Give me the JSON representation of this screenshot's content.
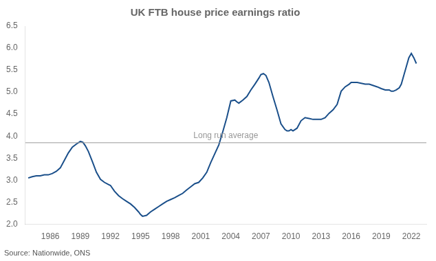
{
  "chart_data": {
    "type": "line",
    "title": "UK FTB house price earnings ratio",
    "source": "Source: Nationwide, ONS",
    "x": [
      1983.8,
      1984.2,
      1984.6,
      1985.0,
      1985.4,
      1985.8,
      1986.2,
      1986.6,
      1987.0,
      1987.4,
      1987.8,
      1988.2,
      1988.6,
      1989.0,
      1989.25,
      1989.5,
      1989.8,
      1990.2,
      1990.6,
      1991.0,
      1991.4,
      1991.8,
      1992.0,
      1992.4,
      1992.8,
      1993.2,
      1993.6,
      1994.0,
      1994.4,
      1994.8,
      1995.0,
      1995.2,
      1995.6,
      1996.0,
      1996.4,
      1996.8,
      1997.2,
      1997.6,
      1998.0,
      1998.4,
      1998.8,
      1999.2,
      1999.6,
      2000.0,
      2000.4,
      2000.8,
      2001.2,
      2001.6,
      2002.0,
      2002.4,
      2002.8,
      2003.2,
      2003.6,
      2004.0,
      2004.4,
      2004.6,
      2004.8,
      2005.2,
      2005.6,
      2006.0,
      2006.4,
      2006.8,
      2007.0,
      2007.25,
      2007.5,
      2007.8,
      2008.2,
      2008.6,
      2009.0,
      2009.4,
      2009.6,
      2009.8,
      2010.0,
      2010.2,
      2010.6,
      2011.0,
      2011.4,
      2011.8,
      2012.2,
      2012.6,
      2013.0,
      2013.4,
      2013.8,
      2014.2,
      2014.6,
      2015.0,
      2015.4,
      2015.8,
      2016.0,
      2016.2,
      2016.6,
      2017.0,
      2017.4,
      2017.8,
      2018.2,
      2018.6,
      2019.0,
      2019.4,
      2019.8,
      2020.0,
      2020.2,
      2020.5,
      2020.8,
      2021.0,
      2021.25,
      2021.5,
      2021.75,
      2022.0,
      2022.25,
      2022.5
    ],
    "values": [
      3.05,
      3.08,
      3.1,
      3.1,
      3.12,
      3.12,
      3.15,
      3.2,
      3.28,
      3.45,
      3.62,
      3.75,
      3.82,
      3.88,
      3.86,
      3.78,
      3.65,
      3.42,
      3.18,
      3.02,
      2.95,
      2.9,
      2.88,
      2.75,
      2.65,
      2.58,
      2.52,
      2.46,
      2.38,
      2.28,
      2.22,
      2.18,
      2.2,
      2.28,
      2.34,
      2.4,
      2.46,
      2.52,
      2.56,
      2.6,
      2.65,
      2.7,
      2.78,
      2.85,
      2.92,
      2.95,
      3.05,
      3.18,
      3.4,
      3.6,
      3.8,
      4.1,
      4.42,
      4.8,
      4.82,
      4.78,
      4.75,
      4.82,
      4.9,
      5.05,
      5.18,
      5.32,
      5.4,
      5.42,
      5.38,
      5.22,
      4.9,
      4.6,
      4.28,
      4.15,
      4.12,
      4.12,
      4.15,
      4.12,
      4.18,
      4.35,
      4.42,
      4.4,
      4.38,
      4.38,
      4.38,
      4.42,
      4.52,
      4.6,
      4.72,
      5.02,
      5.12,
      5.18,
      5.22,
      5.22,
      5.22,
      5.2,
      5.18,
      5.18,
      5.15,
      5.12,
      5.08,
      5.05,
      5.05,
      5.02,
      5.02,
      5.05,
      5.1,
      5.18,
      5.38,
      5.58,
      5.78,
      5.88,
      5.78,
      5.65
    ],
    "color": "#1a4f8a",
    "reference_line": {
      "y": 3.85,
      "label": "Long run average",
      "color": "#999999"
    },
    "xlim": [
      1983.5,
      2023.5
    ],
    "xticks": [
      1986,
      1989,
      1992,
      1995,
      1998,
      2001,
      2004,
      2007,
      2010,
      2013,
      2016,
      2019,
      2022
    ],
    "ylim": [
      2.0,
      6.5
    ],
    "yticks": [
      {
        "value": 2.0,
        "label": "2.0"
      },
      2.5,
      {
        "value": 3.0,
        "label": "3.0"
      },
      3.5,
      {
        "value": 4.0,
        "label": "4.0"
      },
      4.5,
      {
        "value": 5.0,
        "label": "5.0"
      },
      5.5,
      {
        "value": 6.0,
        "label": "6.0"
      },
      6.5
    ],
    "grid": false
  }
}
